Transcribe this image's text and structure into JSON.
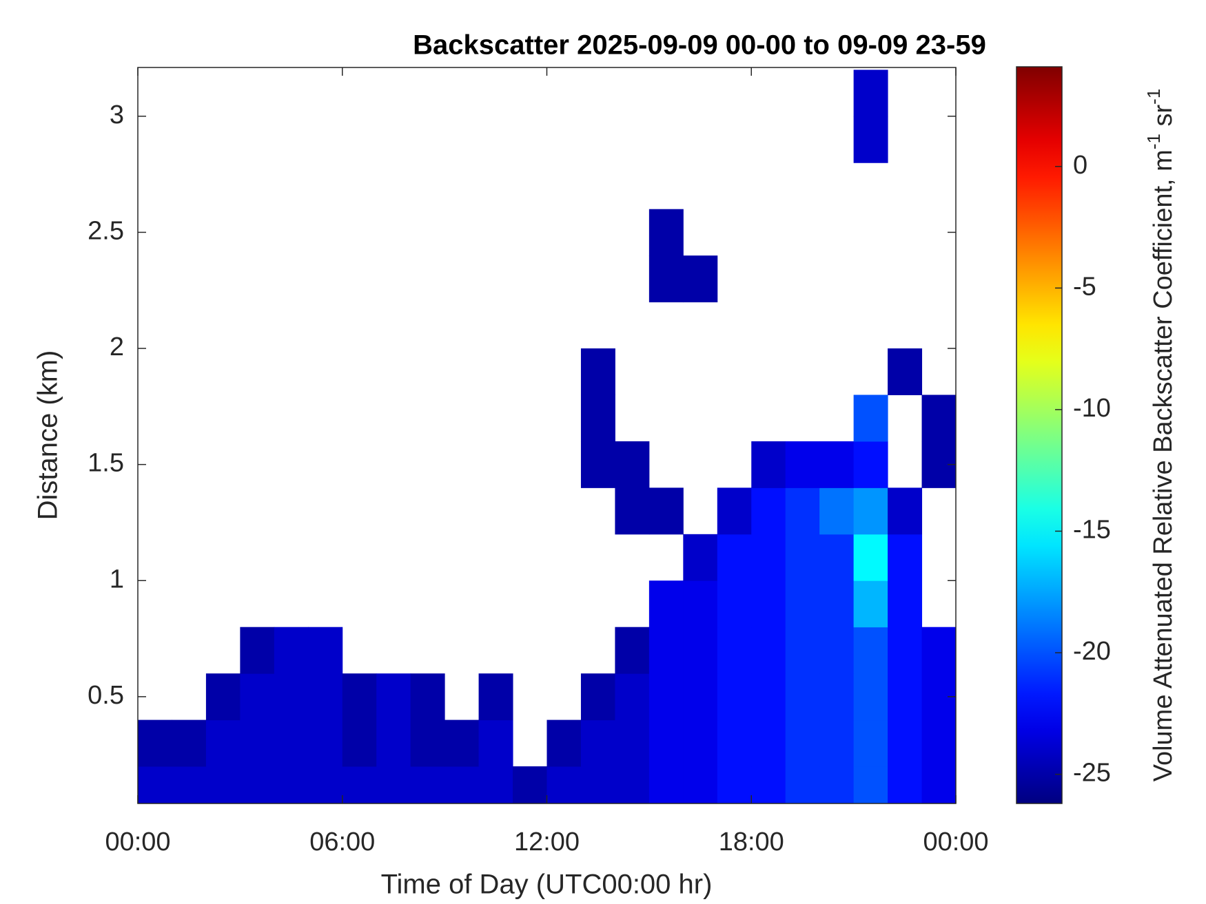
{
  "chart_data": {
    "type": "heatmap",
    "title": "Backscatter 2025-09-09 00-00 to 09-09 23-59",
    "x_label": "Time of Day (UTC00:00 hr)",
    "y_label": "Distance (km)",
    "colorbar_label": {
      "text": "Volume Attenuated Relative Backscatter Coefficient, m",
      "sup1": "-1",
      "mid": " sr",
      "sup2": "-1"
    },
    "colormap": "jet",
    "xlim": [
      0,
      24
    ],
    "xticks": [
      {
        "value": 0,
        "label": "00:00"
      },
      {
        "value": 6,
        "label": "06:00"
      },
      {
        "value": 12,
        "label": "12:00"
      },
      {
        "value": 18,
        "label": "18:00"
      },
      {
        "value": 24,
        "label": "00:00"
      }
    ],
    "ylim": [
      0.04,
      3.21
    ],
    "yticks": [
      0.5,
      1,
      1.5,
      2,
      2.5,
      3
    ],
    "clim": [
      -26.2,
      4.1
    ],
    "cticks": [
      -25,
      -20,
      -15,
      -10,
      -5,
      0
    ],
    "x": [
      0.5,
      1.5,
      2.5,
      3.5,
      4.5,
      5.5,
      6.5,
      7.5,
      8.5,
      9.5,
      10.5,
      11.5,
      12.5,
      13.5,
      14.5,
      15.5,
      16.5,
      17.5,
      18.5,
      19.5,
      20.5,
      21.5,
      22.5,
      23.5
    ],
    "y": [
      0.1,
      0.3,
      0.5,
      0.7,
      0.9,
      1.1,
      1.3,
      1.5,
      1.7,
      1.9,
      2.1,
      2.3,
      2.5,
      2.7,
      2.9,
      3.1
    ],
    "z": [
      [
        -24,
        -24,
        -24,
        -24,
        -24,
        -24,
        -24,
        -24,
        -24,
        -24,
        -24,
        -25,
        -24,
        -24,
        -24,
        -23,
        -23,
        -22,
        -22,
        -21,
        -21,
        -20,
        -22,
        -23
      ],
      [
        -25,
        -25,
        -24,
        -24,
        -24,
        -24,
        -25,
        -24,
        -25,
        -25,
        -24,
        null,
        -25,
        -24,
        -24,
        -23,
        -23,
        -22,
        -22,
        -21,
        -21,
        -20,
        -22,
        -23
      ],
      [
        null,
        null,
        -25,
        -24,
        -24,
        -24,
        -25,
        -24,
        -25,
        null,
        -25,
        null,
        null,
        -25,
        -24,
        -23,
        -23,
        -22,
        -22,
        -21,
        -21,
        -20,
        -22,
        -23
      ],
      [
        null,
        null,
        null,
        -25,
        -24,
        -24,
        null,
        null,
        null,
        null,
        null,
        null,
        null,
        null,
        -25,
        -23,
        -23,
        -22,
        -22,
        -21,
        -21,
        -20,
        -22,
        -23
      ],
      [
        null,
        null,
        null,
        null,
        null,
        null,
        null,
        null,
        null,
        null,
        null,
        null,
        null,
        null,
        null,
        -23,
        -23,
        -22,
        -22,
        -21,
        -21,
        -17,
        -22,
        null
      ],
      [
        null,
        null,
        null,
        null,
        null,
        null,
        null,
        null,
        null,
        null,
        null,
        null,
        null,
        null,
        null,
        null,
        -24,
        -22,
        -22,
        -21,
        -21,
        -15,
        -22,
        null
      ],
      [
        null,
        null,
        null,
        null,
        null,
        null,
        null,
        null,
        null,
        null,
        null,
        null,
        null,
        null,
        -25,
        -25,
        null,
        -24,
        -22,
        -21,
        -19,
        -18,
        -24,
        null
      ],
      [
        null,
        null,
        null,
        null,
        null,
        null,
        null,
        null,
        null,
        null,
        null,
        null,
        null,
        -25,
        -25,
        null,
        null,
        null,
        -24,
        -23,
        -23,
        -22,
        null,
        -25
      ],
      [
        null,
        null,
        null,
        null,
        null,
        null,
        null,
        null,
        null,
        null,
        null,
        null,
        null,
        -25,
        null,
        null,
        null,
        null,
        null,
        null,
        null,
        -20,
        null,
        -25
      ],
      [
        null,
        null,
        null,
        null,
        null,
        null,
        null,
        null,
        null,
        null,
        null,
        null,
        null,
        -25,
        null,
        null,
        null,
        null,
        null,
        null,
        null,
        null,
        -25,
        null
      ],
      [
        null,
        null,
        null,
        null,
        null,
        null,
        null,
        null,
        null,
        null,
        null,
        null,
        null,
        null,
        null,
        null,
        null,
        null,
        null,
        null,
        null,
        null,
        null,
        null
      ],
      [
        null,
        null,
        null,
        null,
        null,
        null,
        null,
        null,
        null,
        null,
        null,
        null,
        null,
        null,
        null,
        -25,
        -25,
        null,
        null,
        null,
        null,
        null,
        null,
        null
      ],
      [
        null,
        null,
        null,
        null,
        null,
        null,
        null,
        null,
        null,
        null,
        null,
        null,
        null,
        null,
        null,
        -25,
        null,
        null,
        null,
        null,
        null,
        null,
        null,
        null
      ],
      [
        null,
        null,
        null,
        null,
        null,
        null,
        null,
        null,
        null,
        null,
        null,
        null,
        null,
        null,
        null,
        null,
        null,
        null,
        null,
        null,
        null,
        null,
        null,
        null
      ],
      [
        null,
        null,
        null,
        null,
        null,
        null,
        null,
        null,
        null,
        null,
        null,
        null,
        null,
        null,
        null,
        null,
        null,
        null,
        null,
        null,
        null,
        -24,
        null,
        null
      ],
      [
        null,
        null,
        null,
        null,
        null,
        null,
        null,
        null,
        null,
        null,
        null,
        null,
        null,
        null,
        null,
        null,
        null,
        null,
        null,
        null,
        null,
        -24,
        null,
        null
      ]
    ]
  }
}
